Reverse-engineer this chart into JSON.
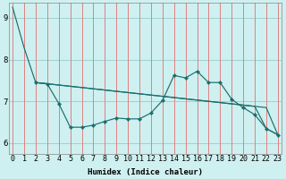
{
  "xlabel": "Humidex (Indice chaleur)",
  "bg_color": "#cff0f0",
  "grid_color_h": "#a0d0d0",
  "grid_color_v": "#e08080",
  "line_color": "#1a6e6e",
  "x_ticks": [
    0,
    1,
    2,
    3,
    4,
    5,
    6,
    7,
    8,
    9,
    10,
    11,
    12,
    13,
    14,
    15,
    16,
    17,
    18,
    19,
    20,
    21,
    22,
    23
  ],
  "y_ticks": [
    6,
    7,
    8,
    9
  ],
  "xlim": [
    -0.3,
    23.3
  ],
  "ylim": [
    5.75,
    9.35
  ],
  "line1_x": [
    0,
    1,
    2,
    3,
    4,
    5,
    6,
    7,
    8,
    9,
    10,
    11,
    12,
    13,
    14,
    15,
    16,
    17,
    18,
    19,
    20,
    21,
    22,
    23
  ],
  "line1_y": [
    9.25,
    8.28,
    7.45,
    7.42,
    7.39,
    7.36,
    7.33,
    7.3,
    7.27,
    7.24,
    7.21,
    7.18,
    7.15,
    7.12,
    7.09,
    7.06,
    7.03,
    7.0,
    6.97,
    6.94,
    6.91,
    6.88,
    6.85,
    6.2
  ],
  "line2_x": [
    2,
    3,
    4,
    5,
    6,
    7,
    8,
    9,
    10,
    11,
    12,
    13,
    14,
    15,
    16,
    17,
    18,
    19,
    20,
    21,
    22,
    23
  ],
  "line2_y": [
    7.45,
    7.42,
    7.39,
    7.36,
    7.33,
    7.3,
    7.27,
    7.24,
    7.21,
    7.18,
    7.15,
    7.12,
    7.09,
    7.06,
    7.03,
    7.0,
    6.97,
    6.94,
    6.91,
    6.88,
    6.35,
    6.2
  ],
  "line3_x": [
    2,
    3,
    4,
    5,
    6,
    7,
    8,
    9,
    10,
    11,
    12,
    13,
    14,
    15,
    16,
    17,
    18,
    19,
    20,
    21,
    22,
    23
  ],
  "line3_y": [
    7.45,
    7.42,
    6.95,
    6.38,
    6.38,
    6.43,
    6.52,
    6.6,
    6.58,
    6.58,
    6.72,
    7.02,
    7.62,
    7.56,
    7.72,
    7.45,
    7.45,
    7.05,
    6.85,
    6.68,
    6.35,
    6.2
  ],
  "xlabel_fontsize": 6.5,
  "tick_fontsize": 6.0
}
